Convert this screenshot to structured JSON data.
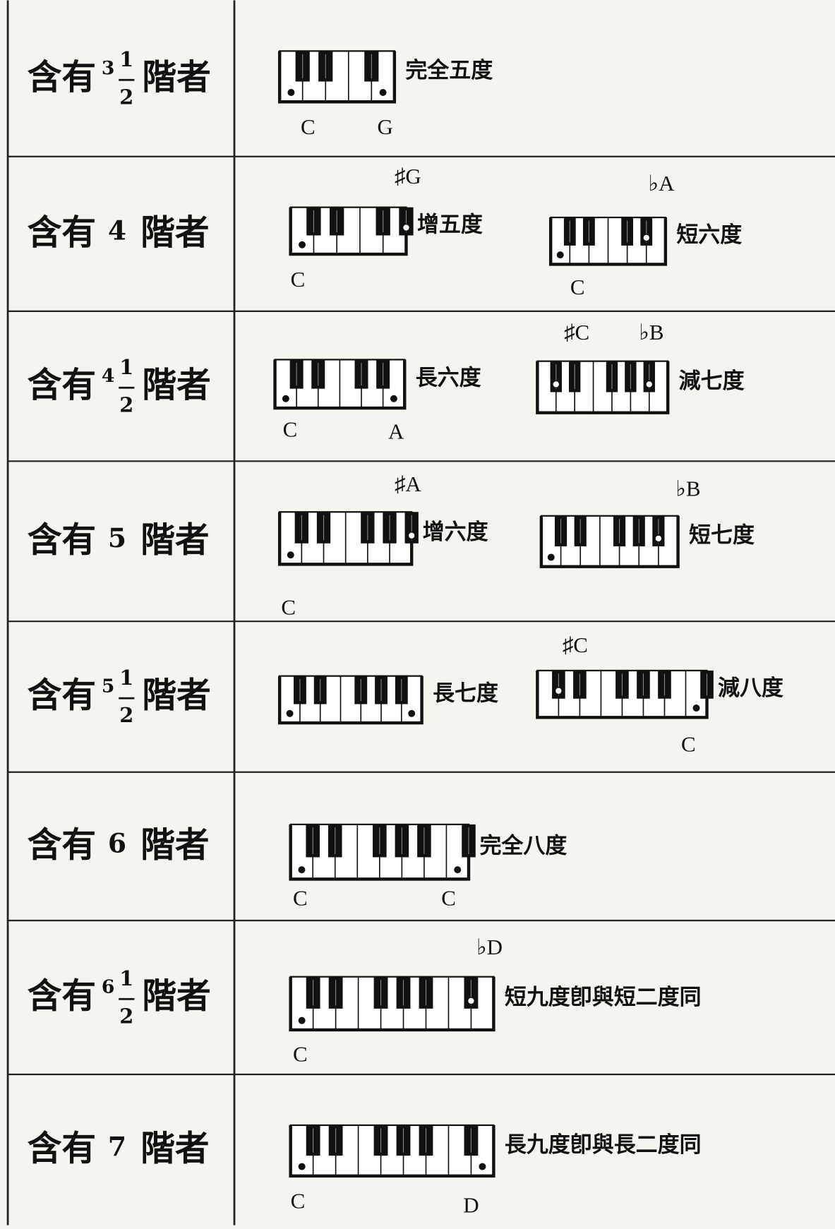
{
  "rows": [
    {
      "label": {
        "prefix": "含有",
        "whole": "3",
        "numerator": "1",
        "denominator": "2",
        "suffix": "階者"
      },
      "intervals": [
        {
          "name": "完全五度",
          "notes": [
            "C",
            "G"
          ]
        }
      ]
    },
    {
      "label": {
        "prefix": "含有",
        "whole": "4",
        "suffix": "階者"
      },
      "intervals": [
        {
          "name": "增五度",
          "notes": [
            "♯G",
            "C"
          ]
        },
        {
          "name": "短六度",
          "notes": [
            "♭A",
            "C"
          ]
        }
      ]
    },
    {
      "label": {
        "prefix": "含有",
        "whole": "4",
        "numerator": "1",
        "denominator": "2",
        "suffix": "階者"
      },
      "intervals": [
        {
          "name": "長六度",
          "notes": [
            "C",
            "A"
          ]
        },
        {
          "name": "減七度",
          "notes": [
            "♯C",
            "♭B"
          ]
        }
      ]
    },
    {
      "label": {
        "prefix": "含有",
        "whole": "5",
        "suffix": "階者"
      },
      "intervals": [
        {
          "name": "增六度",
          "notes": [
            "♯A",
            "C"
          ]
        },
        {
          "name": "短七度",
          "notes": [
            "♭B"
          ]
        }
      ]
    },
    {
      "label": {
        "prefix": "含有",
        "whole": "5",
        "numerator": "1",
        "denominator": "2",
        "suffix": "階者"
      },
      "intervals": [
        {
          "name": "長七度",
          "notes": []
        },
        {
          "name": "減八度",
          "notes": [
            "♯C",
            "C"
          ]
        }
      ]
    },
    {
      "label": {
        "prefix": "含有",
        "whole": "6",
        "suffix": "階者"
      },
      "intervals": [
        {
          "name": "完全八度",
          "notes": [
            "C",
            "C"
          ]
        }
      ]
    },
    {
      "label": {
        "prefix": "含有",
        "whole": "6",
        "numerator": "1",
        "denominator": "2",
        "suffix": "階者"
      },
      "intervals": [
        {
          "name": "短九度卽與短二度同",
          "notes": [
            "♭D",
            "C"
          ]
        }
      ]
    },
    {
      "label": {
        "prefix": "含有",
        "whole": "7",
        "suffix": "階者"
      },
      "intervals": [
        {
          "name": "長九度卽與長二度同",
          "notes": [
            "C",
            "D"
          ]
        }
      ]
    }
  ]
}
